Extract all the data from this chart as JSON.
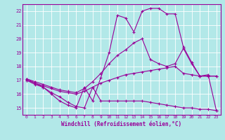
{
  "xlabel": "Windchill (Refroidissement éolien,°C)",
  "background_color": "#b2e8e8",
  "line_color": "#990099",
  "grid_color": "#ffffff",
  "xlim": [
    -0.5,
    23.5
  ],
  "ylim": [
    14.5,
    22.5
  ],
  "yticks": [
    15,
    16,
    17,
    18,
    19,
    20,
    21,
    22
  ],
  "xticks": [
    0,
    1,
    2,
    3,
    4,
    5,
    6,
    7,
    8,
    9,
    10,
    11,
    12,
    13,
    14,
    15,
    16,
    17,
    18,
    19,
    20,
    21,
    22,
    23
  ],
  "series": [
    {
      "x": [
        0,
        1,
        2,
        3,
        4,
        5,
        6,
        7,
        8,
        9,
        10,
        11,
        12,
        13,
        14,
        15,
        16,
        17,
        18,
        19,
        20,
        21,
        22,
        23
      ],
      "y": [
        17.0,
        16.7,
        16.5,
        16.1,
        15.8,
        15.4,
        15.1,
        15.0,
        16.5,
        15.5,
        15.5,
        15.5,
        15.5,
        15.5,
        15.5,
        15.4,
        15.3,
        15.2,
        15.1,
        15.0,
        15.0,
        14.9,
        14.9,
        14.8
      ]
    },
    {
      "x": [
        0,
        1,
        2,
        3,
        4,
        5,
        6,
        7,
        8,
        9,
        10,
        11,
        12,
        13,
        14,
        15,
        16,
        17,
        18,
        19,
        20,
        21,
        22,
        23
      ],
      "y": [
        17.0,
        16.8,
        16.6,
        16.4,
        16.2,
        16.1,
        16.0,
        16.2,
        16.5,
        16.8,
        17.0,
        17.2,
        17.4,
        17.5,
        17.6,
        17.7,
        17.8,
        17.9,
        18.0,
        17.5,
        17.4,
        17.3,
        17.3,
        17.3
      ]
    },
    {
      "x": [
        0,
        1,
        2,
        3,
        4,
        5,
        6,
        7,
        8,
        9,
        10,
        11,
        12,
        13,
        14,
        15,
        16,
        17,
        18,
        19,
        20,
        21,
        22,
        23
      ],
      "y": [
        17.1,
        16.9,
        16.7,
        16.5,
        16.3,
        16.2,
        16.1,
        16.4,
        16.9,
        17.5,
        18.2,
        18.8,
        19.2,
        19.7,
        20.0,
        18.5,
        18.2,
        18.0,
        18.2,
        19.3,
        18.2,
        17.3,
        17.3,
        17.3
      ]
    },
    {
      "x": [
        0,
        1,
        2,
        3,
        4,
        5,
        6,
        7,
        8,
        9,
        10,
        11,
        12,
        13,
        14,
        15,
        16,
        17,
        18,
        19,
        20,
        21,
        22,
        23
      ],
      "y": [
        17.1,
        16.8,
        16.5,
        16.0,
        15.5,
        15.2,
        15.0,
        16.5,
        15.5,
        17.2,
        19.0,
        21.7,
        21.5,
        20.5,
        22.0,
        22.2,
        22.2,
        21.8,
        21.8,
        19.4,
        18.3,
        17.3,
        17.4,
        14.8
      ]
    }
  ]
}
